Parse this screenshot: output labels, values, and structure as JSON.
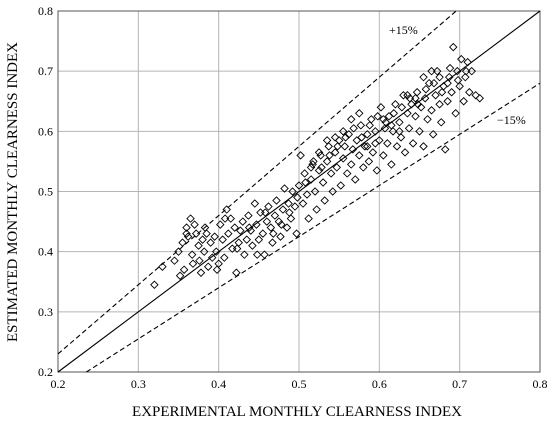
{
  "chart_data": {
    "type": "scatter",
    "title": "",
    "xlabel": "EXPERIMENTAL MONTHLY CLEARNESS INDEX",
    "ylabel": "ESTIMATED MONTHLY CLEARNESS INDEX",
    "xlim": [
      0.2,
      0.8
    ],
    "ylim": [
      0.2,
      0.8
    ],
    "xticks": [
      0.2,
      0.3,
      0.4,
      0.5,
      0.6,
      0.7,
      0.8
    ],
    "yticks": [
      0.2,
      0.3,
      0.4,
      0.5,
      0.6,
      0.7,
      0.8
    ],
    "xtick_labels": [
      "0.2",
      "0.3",
      "0.4",
      "0.5",
      "0.6",
      "0.7",
      "0.8"
    ],
    "ytick_labels": [
      "0.2",
      "0.3",
      "0.4",
      "0.5",
      "0.6",
      "0.7",
      "0.8"
    ],
    "grid": true,
    "marker": "diamond-open",
    "reference_lines": [
      {
        "style": "solid",
        "slope": 1.0,
        "label": ""
      },
      {
        "style": "dashed",
        "slope": 1.15,
        "label": "+15%"
      },
      {
        "style": "dashed",
        "slope": 0.85,
        "label": "−15%"
      }
    ],
    "points": [
      [
        0.32,
        0.345
      ],
      [
        0.33,
        0.375
      ],
      [
        0.345,
        0.385
      ],
      [
        0.35,
        0.4
      ],
      [
        0.352,
        0.36
      ],
      [
        0.355,
        0.415
      ],
      [
        0.357,
        0.37
      ],
      [
        0.36,
        0.44
      ],
      [
        0.362,
        0.425
      ],
      [
        0.365,
        0.455
      ],
      [
        0.367,
        0.395
      ],
      [
        0.37,
        0.445
      ],
      [
        0.372,
        0.43
      ],
      [
        0.375,
        0.41
      ],
      [
        0.376,
        0.385
      ],
      [
        0.378,
        0.365
      ],
      [
        0.38,
        0.42
      ],
      [
        0.382,
        0.4
      ],
      [
        0.385,
        0.43
      ],
      [
        0.387,
        0.375
      ],
      [
        0.39,
        0.415
      ],
      [
        0.392,
        0.39
      ],
      [
        0.395,
        0.425
      ],
      [
        0.397,
        0.4
      ],
      [
        0.4,
        0.38
      ],
      [
        0.402,
        0.445
      ],
      [
        0.405,
        0.42
      ],
      [
        0.407,
        0.39
      ],
      [
        0.41,
        0.47
      ],
      [
        0.412,
        0.43
      ],
      [
        0.415,
        0.455
      ],
      [
        0.417,
        0.405
      ],
      [
        0.42,
        0.44
      ],
      [
        0.422,
        0.365
      ],
      [
        0.425,
        0.415
      ],
      [
        0.427,
        0.435
      ],
      [
        0.43,
        0.45
      ],
      [
        0.432,
        0.395
      ],
      [
        0.435,
        0.42
      ],
      [
        0.437,
        0.46
      ],
      [
        0.44,
        0.435
      ],
      [
        0.442,
        0.41
      ],
      [
        0.445,
        0.48
      ],
      [
        0.447,
        0.445
      ],
      [
        0.45,
        0.42
      ],
      [
        0.452,
        0.465
      ],
      [
        0.455,
        0.43
      ],
      [
        0.457,
        0.395
      ],
      [
        0.46,
        0.45
      ],
      [
        0.462,
        0.475
      ],
      [
        0.465,
        0.44
      ],
      [
        0.467,
        0.415
      ],
      [
        0.47,
        0.46
      ],
      [
        0.472,
        0.485
      ],
      [
        0.475,
        0.45
      ],
      [
        0.477,
        0.425
      ],
      [
        0.48,
        0.47
      ],
      [
        0.482,
        0.505
      ],
      [
        0.485,
        0.44
      ],
      [
        0.487,
        0.48
      ],
      [
        0.49,
        0.455
      ],
      [
        0.492,
        0.5
      ],
      [
        0.495,
        0.475
      ],
      [
        0.497,
        0.43
      ],
      [
        0.5,
        0.51
      ],
      [
        0.502,
        0.56
      ],
      [
        0.505,
        0.48
      ],
      [
        0.507,
        0.53
      ],
      [
        0.51,
        0.495
      ],
      [
        0.512,
        0.455
      ],
      [
        0.515,
        0.52
      ],
      [
        0.517,
        0.545
      ],
      [
        0.52,
        0.5
      ],
      [
        0.522,
        0.47
      ],
      [
        0.525,
        0.535
      ],
      [
        0.527,
        0.56
      ],
      [
        0.53,
        0.515
      ],
      [
        0.532,
        0.485
      ],
      [
        0.535,
        0.55
      ],
      [
        0.537,
        0.575
      ],
      [
        0.54,
        0.53
      ],
      [
        0.542,
        0.5
      ],
      [
        0.545,
        0.565
      ],
      [
        0.547,
        0.54
      ],
      [
        0.55,
        0.585
      ],
      [
        0.552,
        0.51
      ],
      [
        0.555,
        0.555
      ],
      [
        0.557,
        0.575
      ],
      [
        0.56,
        0.53
      ],
      [
        0.562,
        0.595
      ],
      [
        0.565,
        0.545
      ],
      [
        0.567,
        0.57
      ],
      [
        0.57,
        0.52
      ],
      [
        0.572,
        0.585
      ],
      [
        0.575,
        0.56
      ],
      [
        0.577,
        0.61
      ],
      [
        0.58,
        0.54
      ],
      [
        0.582,
        0.575
      ],
      [
        0.585,
        0.595
      ],
      [
        0.587,
        0.55
      ],
      [
        0.59,
        0.62
      ],
      [
        0.592,
        0.565
      ],
      [
        0.595,
        0.6
      ],
      [
        0.597,
        0.535
      ],
      [
        0.6,
        0.585
      ],
      [
        0.602,
        0.64
      ],
      [
        0.605,
        0.56
      ],
      [
        0.607,
        0.605
      ],
      [
        0.61,
        0.58
      ],
      [
        0.612,
        0.625
      ],
      [
        0.615,
        0.545
      ],
      [
        0.617,
        0.6
      ],
      [
        0.62,
        0.645
      ],
      [
        0.622,
        0.575
      ],
      [
        0.625,
        0.615
      ],
      [
        0.627,
        0.59
      ],
      [
        0.63,
        0.66
      ],
      [
        0.632,
        0.565
      ],
      [
        0.635,
        0.63
      ],
      [
        0.637,
        0.605
      ],
      [
        0.64,
        0.645
      ],
      [
        0.642,
        0.58
      ],
      [
        0.645,
        0.625
      ],
      [
        0.647,
        0.665
      ],
      [
        0.65,
        0.6
      ],
      [
        0.652,
        0.64
      ],
      [
        0.655,
        0.575
      ],
      [
        0.657,
        0.655
      ],
      [
        0.66,
        0.62
      ],
      [
        0.662,
        0.68
      ],
      [
        0.665,
        0.635
      ],
      [
        0.667,
        0.595
      ],
      [
        0.67,
        0.66
      ],
      [
        0.672,
        0.7
      ],
      [
        0.675,
        0.645
      ],
      [
        0.677,
        0.615
      ],
      [
        0.68,
        0.675
      ],
      [
        0.682,
        0.57
      ],
      [
        0.685,
        0.65
      ],
      [
        0.687,
        0.69
      ],
      [
        0.69,
        0.665
      ],
      [
        0.692,
        0.74
      ],
      [
        0.695,
        0.63
      ],
      [
        0.697,
        0.7
      ],
      [
        0.7,
        0.675
      ],
      [
        0.702,
        0.72
      ],
      [
        0.705,
        0.65
      ],
      [
        0.707,
        0.69
      ],
      [
        0.71,
        0.715
      ],
      [
        0.712,
        0.665
      ],
      [
        0.715,
        0.7
      ],
      [
        0.72,
        0.66
      ],
      [
        0.725,
        0.655
      ],
      [
        0.36,
        0.43
      ],
      [
        0.368,
        0.38
      ],
      [
        0.383,
        0.44
      ],
      [
        0.398,
        0.37
      ],
      [
        0.408,
        0.455
      ],
      [
        0.423,
        0.405
      ],
      [
        0.438,
        0.44
      ],
      [
        0.448,
        0.395
      ],
      [
        0.458,
        0.465
      ],
      [
        0.468,
        0.43
      ],
      [
        0.478,
        0.445
      ],
      [
        0.488,
        0.465
      ],
      [
        0.498,
        0.49
      ],
      [
        0.508,
        0.515
      ],
      [
        0.518,
        0.55
      ],
      [
        0.528,
        0.54
      ],
      [
        0.538,
        0.56
      ],
      [
        0.548,
        0.575
      ],
      [
        0.558,
        0.59
      ],
      [
        0.568,
        0.605
      ],
      [
        0.578,
        0.59
      ],
      [
        0.588,
        0.61
      ],
      [
        0.598,
        0.625
      ],
      [
        0.608,
        0.615
      ],
      [
        0.618,
        0.63
      ],
      [
        0.628,
        0.64
      ],
      [
        0.638,
        0.655
      ],
      [
        0.648,
        0.645
      ],
      [
        0.658,
        0.67
      ],
      [
        0.668,
        0.68
      ],
      [
        0.678,
        0.665
      ],
      [
        0.688,
        0.705
      ],
      [
        0.698,
        0.685
      ],
      [
        0.708,
        0.7
      ],
      [
        0.515,
        0.54
      ],
      [
        0.525,
        0.565
      ],
      [
        0.535,
        0.585
      ],
      [
        0.545,
        0.59
      ],
      [
        0.555,
        0.6
      ],
      [
        0.565,
        0.62
      ],
      [
        0.575,
        0.63
      ],
      [
        0.585,
        0.575
      ],
      [
        0.595,
        0.58
      ],
      [
        0.605,
        0.62
      ],
      [
        0.615,
        0.61
      ],
      [
        0.625,
        0.6
      ],
      [
        0.635,
        0.66
      ],
      [
        0.645,
        0.655
      ],
      [
        0.655,
        0.69
      ],
      [
        0.665,
        0.7
      ],
      [
        0.675,
        0.69
      ],
      [
        0.685,
        0.68
      ]
    ]
  }
}
